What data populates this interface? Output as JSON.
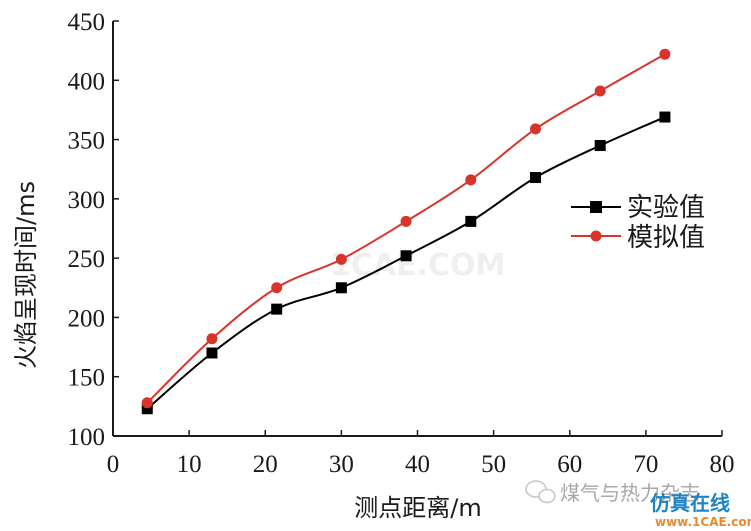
{
  "chart_data": {
    "type": "line",
    "title": "",
    "xlabel": "测点距离/m",
    "ylabel": "火焰呈现时间/ms",
    "xlim": [
      0,
      80
    ],
    "ylim": [
      100,
      450
    ],
    "xticks": [
      0,
      10,
      20,
      30,
      40,
      50,
      60,
      70,
      80
    ],
    "yticks": [
      100,
      150,
      200,
      250,
      300,
      350,
      400,
      450
    ],
    "grid": false,
    "legend_position": "right-middle",
    "series": [
      {
        "name": "实验值",
        "color": "#000000",
        "marker": "square",
        "x": [
          4.5,
          13,
          21.5,
          30,
          38.5,
          47,
          55.5,
          64,
          72.5
        ],
        "values": [
          123,
          170,
          207,
          225,
          252,
          281,
          318,
          345,
          369
        ]
      },
      {
        "name": "模拟值",
        "color": "#d9342b",
        "marker": "circle",
        "x": [
          4.5,
          13,
          21.5,
          30,
          38.5,
          47,
          55.5,
          64,
          72.5
        ],
        "values": [
          128,
          182,
          225,
          249,
          281,
          316,
          359,
          391,
          422
        ]
      }
    ]
  },
  "watermark": {
    "site_text": "1CAE.COM",
    "brand_text": "煤气与热力杂志",
    "footer_text_top": "仿真在线",
    "footer_text_bottom": "www.1CAE.com"
  }
}
